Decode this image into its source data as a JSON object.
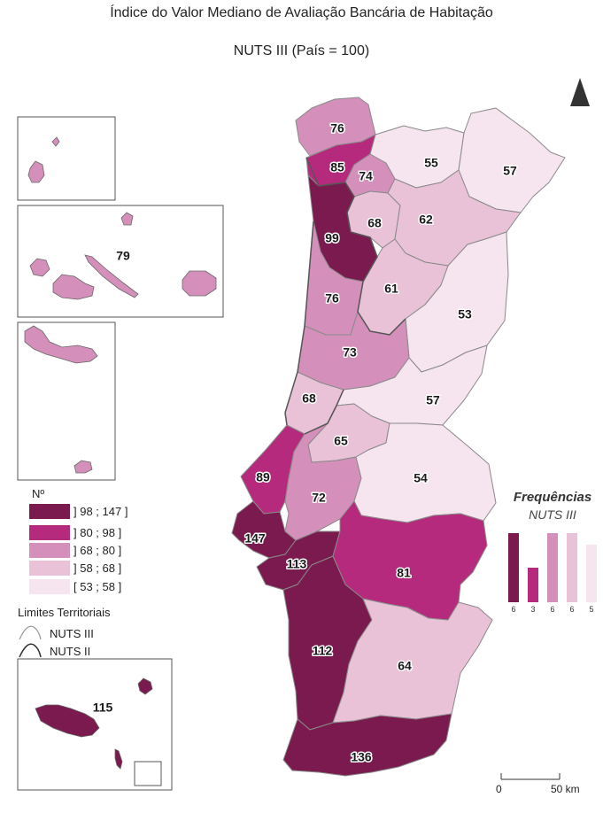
{
  "title": "Índice do Valor Mediano de Avaliação Bancária de Habitação",
  "subtitle": "NUTS III (País = 100)",
  "colors": {
    "c5": "#7a1a4e",
    "c4": "#b52a7d",
    "c3": "#d490ba",
    "c2": "#e9c2d8",
    "c1": "#f6e4ee"
  },
  "legend": {
    "title": "Nº",
    "classes": [
      {
        "label": "] 98 ; 147 ]",
        "color": "#7a1a4e"
      },
      {
        "label": "] 80 ; 98 ]",
        "color": "#b52a7d"
      },
      {
        "label": "] 68 ; 80 ]",
        "color": "#d490ba"
      },
      {
        "label": "] 58 ; 68 ]",
        "color": "#e9c2d8"
      },
      {
        "label": "[ 53 ; 58 ]",
        "color": "#f6e4ee"
      }
    ],
    "boundaries_title": "Limites Territoriais",
    "boundary_nuts3": "NUTS III",
    "boundary_nuts2": "NUTS II"
  },
  "frequencies": {
    "title": "Frequências",
    "subtitle": "NUTS III",
    "counts": [
      6,
      3,
      6,
      6,
      5
    ]
  },
  "regions": {
    "r76a": "76",
    "r85": "85",
    "r74": "74",
    "r55": "55",
    "r57a": "57",
    "r99": "99",
    "r68a": "68",
    "r62": "62",
    "r61": "61",
    "r76b": "76",
    "r53": "53",
    "r73": "73",
    "r68b": "68",
    "r57b": "57",
    "r65": "65",
    "r89": "89",
    "r72": "72",
    "r54": "54",
    "r147": "147",
    "r113": "113",
    "r81": "81",
    "r112": "112",
    "r64": "64",
    "r136": "136",
    "acores": "79",
    "madeira": "115"
  },
  "scale": {
    "zero": "0",
    "fifty": "50 km"
  }
}
